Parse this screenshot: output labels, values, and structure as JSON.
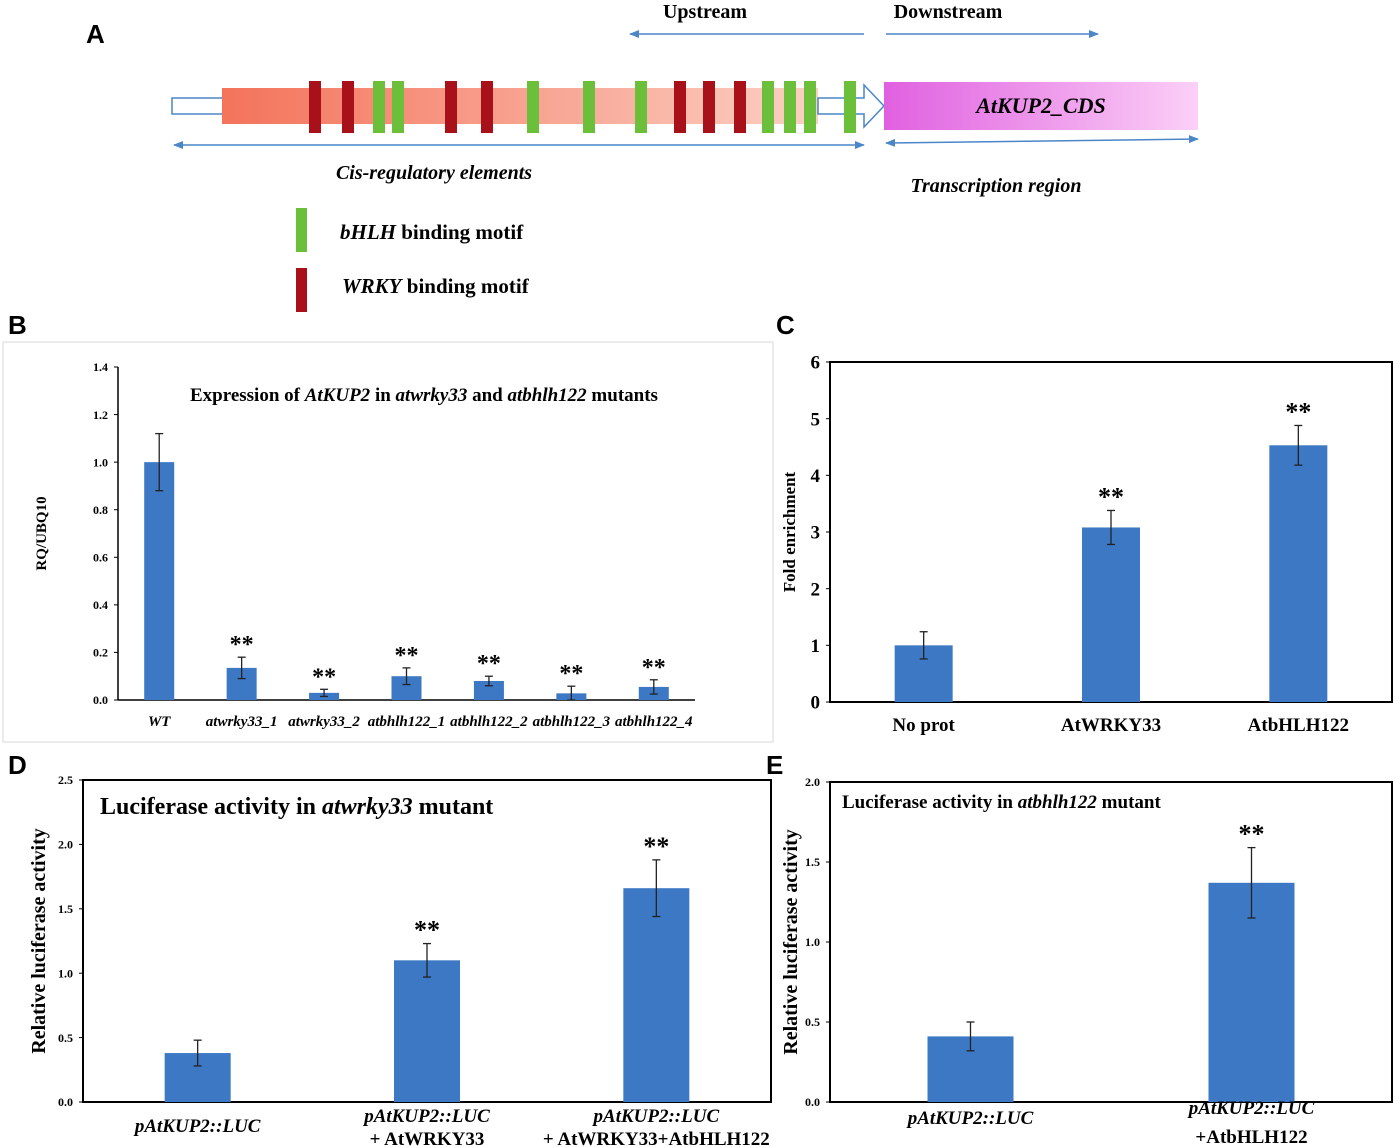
{
  "panel_a": {
    "letter": "A",
    "upstream_label": "Upstream",
    "downstream_label": "Downstream",
    "cds_label": "AtKUP2_CDS",
    "cis_label": "Cis-regulatory elements",
    "transcription_label": "Transcription region",
    "legend": [
      {
        "name_italic": "bHLH",
        "rest": " binding motif",
        "color": "#6cbf3a"
      },
      {
        "name_italic": "WRKY",
        "rest": " binding motif",
        "color": "#a8101a"
      }
    ],
    "motif_sequence": [
      "WRKY",
      "WRKY",
      "bHLH",
      "bHLH",
      "WRKY",
      "WRKY",
      "bHLH",
      "bHLH",
      "bHLH",
      "WRKY",
      "WRKY",
      "WRKY",
      "bHLH",
      "bHLH",
      "bHLH",
      "bHLH"
    ],
    "colors": {
      "promoter": "#f4735b",
      "cds": "#e060e0",
      "arrow": "#4a86c8"
    }
  },
  "bar_color": "#3c78c3",
  "chart_data": [
    {
      "id": "B",
      "type": "bar",
      "letter": "B",
      "title_parts": [
        {
          "text": "Expression of ",
          "italic": false
        },
        {
          "text": "AtKUP2",
          "italic": true
        },
        {
          "text": " in ",
          "italic": false
        },
        {
          "text": "atwrky33",
          "italic": true
        },
        {
          "text": " and ",
          "italic": false
        },
        {
          "text": "atbhlh122",
          "italic": true
        },
        {
          "text": " mutants",
          "italic": false
        }
      ],
      "ylabel": "RQ/UBQ10",
      "ylim": [
        0,
        1.4
      ],
      "yticks": [
        "0.0",
        "0.2",
        "0.4",
        "0.6",
        "0.8",
        "1.0",
        "1.2",
        "1.4"
      ],
      "categories": [
        "WT",
        "atwrky33_1",
        "atwrky33_2",
        "atbhlh122_1",
        "atbhlh122_2",
        "atbhlh122_3",
        "atbhlh122_4"
      ],
      "values": [
        1.0,
        0.135,
        0.03,
        0.1,
        0.08,
        0.028,
        0.055
      ],
      "errors": [
        0.12,
        0.045,
        0.015,
        0.035,
        0.02,
        0.03,
        0.03
      ],
      "significance": [
        "",
        "**",
        "**",
        "**",
        "**",
        "**",
        "**"
      ]
    },
    {
      "id": "C",
      "type": "bar",
      "letter": "C",
      "ylabel": "Fold enrichment",
      "ylim": [
        0,
        6
      ],
      "yticks": [
        "0",
        "1",
        "2",
        "3",
        "4",
        "5",
        "6"
      ],
      "categories": [
        "No prot",
        "AtWRKY33",
        "AtbHLH122"
      ],
      "values": [
        1.0,
        3.08,
        4.53
      ],
      "errors": [
        0.24,
        0.3,
        0.35
      ],
      "significance": [
        "",
        "**",
        "**"
      ]
    },
    {
      "id": "D",
      "type": "bar",
      "letter": "D",
      "title_parts": [
        {
          "text": "Luciferase activity in ",
          "italic": false
        },
        {
          "text": "atwrky33",
          "italic": true
        },
        {
          "text": " mutant",
          "italic": false
        }
      ],
      "ylabel": "Relative luciferase activity",
      "ylim": [
        0,
        2.5
      ],
      "yticks": [
        "0.0",
        "0.5",
        "1.0",
        "1.5",
        "2.0",
        "2.5"
      ],
      "categories": [
        {
          "line1": "pAtKUP2::LUC",
          "line2": ""
        },
        {
          "line1": "pAtKUP2::LUC",
          "line2": "+ AtWRKY33"
        },
        {
          "line1": "pAtKUP2::LUC",
          "line2": "+ AtWRKY33+AtbHLH122"
        }
      ],
      "values": [
        0.38,
        1.1,
        1.66
      ],
      "errors": [
        0.1,
        0.13,
        0.22
      ],
      "significance": [
        "",
        "**",
        "**"
      ]
    },
    {
      "id": "E",
      "type": "bar",
      "letter": "E",
      "title_parts": [
        {
          "text": "Luciferase activity in ",
          "italic": false
        },
        {
          "text": "atbhlh122",
          "italic": true
        },
        {
          "text": " mutant",
          "italic": false
        }
      ],
      "ylabel": "Relative luciferase activity",
      "ylim": [
        0,
        2.0
      ],
      "yticks": [
        "0.0",
        "0.5",
        "1.0",
        "1.5",
        "2.0"
      ],
      "categories": [
        {
          "line1": "pAtKUP2::LUC",
          "line2": ""
        },
        {
          "line1": "pAtKUP2::LUC",
          "line2": "+AtbHLH122"
        }
      ],
      "values": [
        0.41,
        1.37
      ],
      "errors": [
        0.09,
        0.22
      ],
      "significance": [
        "",
        "**"
      ]
    }
  ]
}
